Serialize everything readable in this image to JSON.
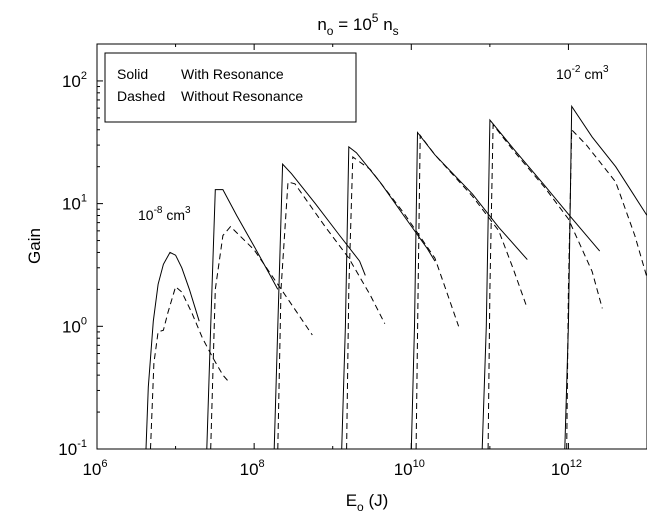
{
  "chart_data": {
    "type": "line",
    "title": {
      "base": "n",
      "sub": "o",
      "mid": " = 10",
      "sup": "5",
      "tail": " n",
      "sub2": "s"
    },
    "xlabel": {
      "base": "E",
      "sub": "o",
      "tail": " (J)"
    },
    "ylabel": "Gain",
    "x_scale": "log",
    "y_scale": "log",
    "xlim": [
      1000000.0,
      10000000000000.0
    ],
    "ylim": [
      0.1,
      200
    ],
    "x_ticks": [
      {
        "value": 1000000.0,
        "base": "10",
        "exp": "6"
      },
      {
        "value": 100000000.0,
        "base": "10",
        "exp": "8"
      },
      {
        "value": 10000000000.0,
        "base": "10",
        "exp": "10"
      },
      {
        "value": 1000000000000.0,
        "base": "10",
        "exp": "12"
      }
    ],
    "y_ticks": [
      {
        "value": 0.1,
        "base": "10",
        "exp": "-1"
      },
      {
        "value": 1,
        "base": "10",
        "exp": "0"
      },
      {
        "value": 10,
        "base": "10",
        "exp": "1"
      },
      {
        "value": 100,
        "base": "10",
        "exp": "2"
      }
    ],
    "legend": {
      "position": "top-left",
      "lines": [
        {
          "style": "Solid",
          "desc": "With Resonance"
        },
        {
          "style": "Dashed",
          "desc": "Without Resonance"
        }
      ]
    },
    "annotations": [
      {
        "base": "10",
        "exp": "-8",
        "unit": " cm",
        "unit_exp": "3",
        "at": [
          3200000.0,
          11.5
        ]
      },
      {
        "base": "10",
        "exp": "-2",
        "unit": " cm",
        "unit_exp": "3",
        "at": [
          1000000000000.0,
          85
        ]
      }
    ],
    "series": [
      {
        "style": "solid",
        "points": [
          [
            4200000.0,
            0.1
          ],
          [
            4500000.0,
            0.32
          ],
          [
            5200000.0,
            1.1
          ],
          [
            6000000.0,
            2.2
          ],
          [
            7000000.0,
            3.2
          ],
          [
            8500000.0,
            4.0
          ],
          [
            10000000.0,
            3.8
          ],
          [
            12000000.0,
            3.0
          ],
          [
            15000000.0,
            2.0
          ],
          [
            20000000.0,
            1.1
          ]
        ]
      },
      {
        "style": "solid",
        "points": [
          [
            25000000.0,
            0.1
          ],
          [
            28000000.0,
            1.0
          ],
          [
            32000000.0,
            13.0
          ],
          [
            40000000.0,
            13.0
          ],
          [
            60000000.0,
            8.0
          ],
          [
            100000000.0,
            4.5
          ],
          [
            160000000.0,
            2.6
          ],
          [
            200000000.0,
            2.0
          ]
        ]
      },
      {
        "style": "solid",
        "points": [
          [
            180000000.0,
            0.1
          ],
          [
            200000000.0,
            1.0
          ],
          [
            230000000.0,
            21.0
          ],
          [
            300000000.0,
            17.5
          ],
          [
            600000000.0,
            10.0
          ],
          [
            1200000000.0,
            5.6
          ],
          [
            2200000000.0,
            3.4
          ],
          [
            2600000000.0,
            2.6
          ]
        ]
      },
      {
        "style": "solid",
        "points": [
          [
            1300000000.0,
            0.1
          ],
          [
            1450000000.0,
            1.0
          ],
          [
            1600000000.0,
            29.0
          ],
          [
            2000000000.0,
            26.0
          ],
          [
            4000000000.0,
            15.0
          ],
          [
            8000000000.0,
            8.0
          ],
          [
            16000000000.0,
            4.3
          ],
          [
            20000000000.0,
            3.4
          ]
        ]
      },
      {
        "style": "solid",
        "points": [
          [
            10000000000.0,
            0.1
          ],
          [
            11000000000.0,
            1.0
          ],
          [
            12000000000.0,
            38.0
          ],
          [
            20000000000.0,
            25.0
          ],
          [
            60000000000.0,
            12.0
          ],
          [
            130000000000.0,
            6.4
          ],
          [
            300000000000.0,
            3.5
          ]
        ]
      },
      {
        "style": "solid",
        "points": [
          [
            80000000000.0,
            0.1
          ],
          [
            90000000000.0,
            1.0
          ],
          [
            100000000000.0,
            48.0
          ],
          [
            200000000000.0,
            28.0
          ],
          [
            500000000000.0,
            14.0
          ],
          [
            1000000000000.0,
            8.2
          ],
          [
            2500000000000.0,
            4.1
          ]
        ]
      },
      {
        "style": "solid",
        "points": [
          [
            900000000000.0,
            0.1
          ],
          [
            1000000000000.0,
            1.0
          ],
          [
            1100000000000.0,
            62.0
          ],
          [
            2000000000000.0,
            35.0
          ],
          [
            4000000000000.0,
            20.0
          ],
          [
            10000000000000.0,
            8.0
          ]
        ]
      },
      {
        "style": "dashed",
        "points": [
          [
            4800000.0,
            0.1
          ],
          [
            5300000.0,
            0.5
          ],
          [
            6000000.0,
            0.9
          ],
          [
            7000000.0,
            0.93
          ],
          [
            8000000.0,
            1.3
          ],
          [
            10000000.0,
            2.1
          ],
          [
            12000000.0,
            1.9
          ],
          [
            16000000.0,
            1.3
          ],
          [
            22000000.0,
            0.8
          ],
          [
            30000000.0,
            0.55
          ],
          [
            40000000.0,
            0.4
          ],
          [
            48000000.0,
            0.35
          ]
        ]
      },
      {
        "style": "dashed",
        "points": [
          [
            28000000.0,
            0.1
          ],
          [
            32000000.0,
            2.0
          ],
          [
            40000000.0,
            5.5
          ],
          [
            50000000.0,
            6.5
          ],
          [
            100000000.0,
            4.2
          ],
          [
            200000000.0,
            2.2
          ],
          [
            350000000.0,
            1.3
          ],
          [
            550000000.0,
            0.85
          ]
        ]
      },
      {
        "style": "dashed",
        "points": [
          [
            200000000.0,
            0.1
          ],
          [
            220000000.0,
            2.0
          ],
          [
            270000000.0,
            15.0
          ],
          [
            330000000.0,
            14.5
          ],
          [
            800000000.0,
            6.5
          ],
          [
            1600000000.0,
            3.6
          ],
          [
            3000000000.0,
            1.8
          ],
          [
            4600000000.0,
            1.05
          ]
        ]
      },
      {
        "style": "dashed",
        "points": [
          [
            1500000000.0,
            0.1
          ],
          [
            1600000000.0,
            2.0
          ],
          [
            1800000000.0,
            24.0
          ],
          [
            3000000000.0,
            19.0
          ],
          [
            8000000000.0,
            8.4
          ],
          [
            20000000000.0,
            3.6
          ],
          [
            30000000000.0,
            1.7
          ],
          [
            40000000000.0,
            1.0
          ]
        ]
      },
      {
        "style": "dashed",
        "points": [
          [
            11500000000.0,
            0.1
          ],
          [
            12200000000.0,
            2.0
          ],
          [
            13000000000.0,
            36.0
          ],
          [
            20000000000.0,
            25.0
          ],
          [
            60000000000.0,
            11.5
          ],
          [
            130000000000.0,
            6.0
          ],
          [
            200000000000.0,
            2.9
          ],
          [
            300000000000.0,
            1.4
          ]
        ]
      },
      {
        "style": "dashed",
        "points": [
          [
            95000000000.0,
            0.1
          ],
          [
            100000000000.0,
            2.0
          ],
          [
            110000000000.0,
            44.0
          ],
          [
            200000000000.0,
            27.0
          ],
          [
            500000000000.0,
            13.5
          ],
          [
            1000000000000.0,
            7.5
          ],
          [
            2000000000000.0,
            2.8
          ],
          [
            2700000000000.0,
            1.4
          ]
        ]
      },
      {
        "style": "dashed",
        "points": [
          [
            950000000000.0,
            0.1
          ],
          [
            1000000000000.0,
            2.0
          ],
          [
            1100000000000.0,
            40.0
          ],
          [
            1700000000000.0,
            30.0
          ],
          [
            4000000000000.0,
            15.0
          ],
          [
            7000000000000.0,
            5.5
          ],
          [
            10000000000000.0,
            2.5
          ],
          [
            13000000000000.0,
            1.2
          ]
        ]
      }
    ]
  }
}
